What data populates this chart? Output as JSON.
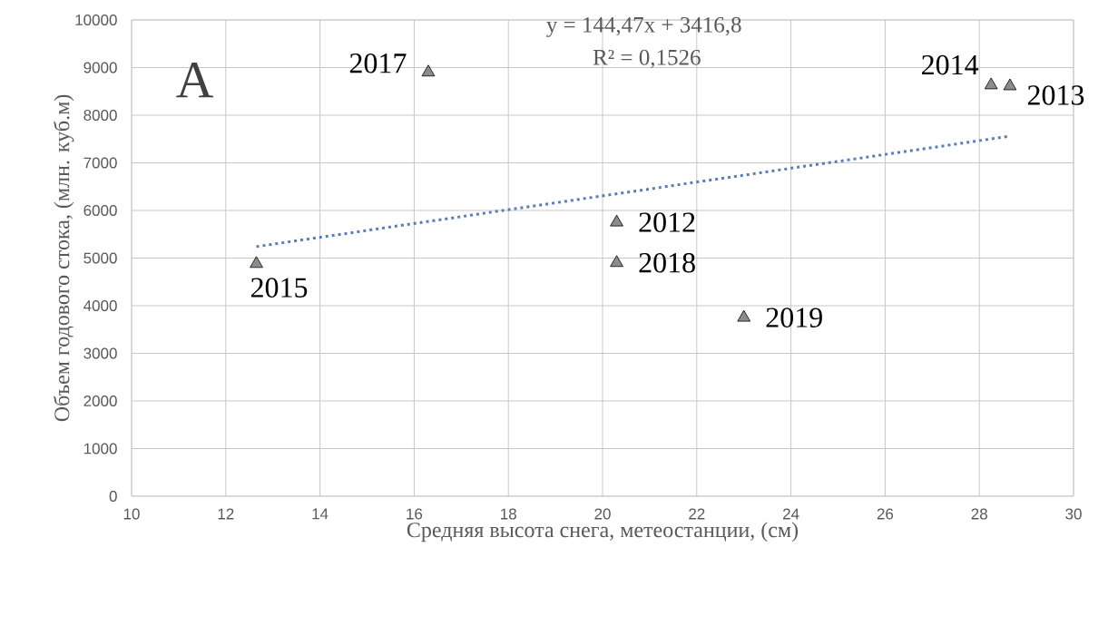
{
  "chart_data": {
    "type": "scatter",
    "xlabel": "Средняя высота снега, метеостанции, (см)",
    "ylabel": "Объем годового стока, (млн. куб.м)",
    "xlim": [
      10,
      30
    ],
    "xticks": [
      10,
      12,
      14,
      16,
      18,
      20,
      22,
      24,
      26,
      28,
      30
    ],
    "ylim": [
      0,
      10000
    ],
    "yticks": [
      0,
      1000,
      2000,
      3000,
      4000,
      5000,
      6000,
      7000,
      8000,
      9000,
      10000
    ],
    "grid": true,
    "series": [
      {
        "type": "scatter",
        "color": "#8c8c8c",
        "marker": "triangle",
        "x": [
          20.3,
          28.65,
          28.25,
          12.65,
          16.3,
          20.3,
          23.0
        ],
        "values": [
          5750,
          8610,
          8630,
          4880,
          8900,
          4900,
          3750
        ]
      },
      {
        "type": "line",
        "color": "#5a7db5",
        "line_style": "dotted",
        "marker": "none",
        "x": [
          12.65,
          28.65
        ],
        "values": [
          5240,
          7560
        ]
      }
    ],
    "annotations": [
      "A",
      "y = 144,47x + 3416,8",
      "R² = 0,1526",
      {
        "text": "2012",
        "x": 20.3,
        "y": 5750
      },
      {
        "text": "2013",
        "x": 28.65,
        "y": 8610
      },
      {
        "text": "2014",
        "x": 28.25,
        "y": 8630
      },
      {
        "text": "2015",
        "x": 12.65,
        "y": 4880
      },
      {
        "text": "2017",
        "x": 16.3,
        "y": 8900
      },
      {
        "text": "2018",
        "x": 20.3,
        "y": 4900
      },
      {
        "text": "2019",
        "x": 23.0,
        "y": 3750
      }
    ]
  }
}
